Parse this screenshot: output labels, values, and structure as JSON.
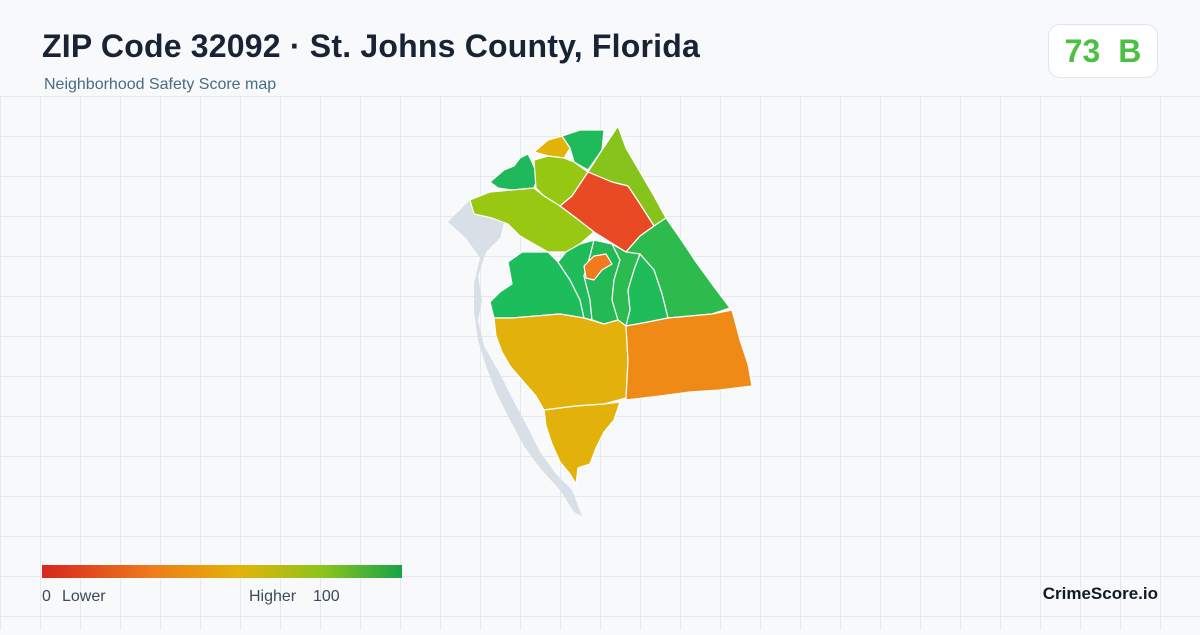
{
  "header": {
    "title": "ZIP Code 32092 · St. Johns County, Florida",
    "subtitle": "Neighborhood Safety Score map"
  },
  "score": {
    "value": "73",
    "grade": "B",
    "color": "#4cbf45"
  },
  "map": {
    "background_color": "#d8dfe6",
    "regions": [
      {
        "id": "nw-coast",
        "score": 85,
        "color": "#1fb85a"
      },
      {
        "id": "north-small",
        "score": 60,
        "color": "#e3b30a"
      },
      {
        "id": "north-top",
        "score": 86,
        "color": "#1fbb5a"
      },
      {
        "id": "north-east",
        "score": 76,
        "color": "#86c41b"
      },
      {
        "id": "north-center",
        "score": 74,
        "color": "#96c813"
      },
      {
        "id": "north-red",
        "score": 15,
        "color": "#e84a24"
      },
      {
        "id": "west-band",
        "score": 74,
        "color": "#98c812"
      },
      {
        "id": "east-upper",
        "score": 83,
        "color": "#2dbb4d"
      },
      {
        "id": "center-west",
        "score": 87,
        "color": "#1dbd5c"
      },
      {
        "id": "center-1",
        "score": 88,
        "color": "#20bc5c"
      },
      {
        "id": "center-2",
        "score": 86,
        "color": "#23ba55"
      },
      {
        "id": "center-orange",
        "score": 32,
        "color": "#f07a1c"
      },
      {
        "id": "center-3",
        "score": 84,
        "color": "#2bbb50"
      },
      {
        "id": "center-4",
        "score": 86,
        "color": "#1fbd5a"
      },
      {
        "id": "south-west",
        "score": 55,
        "color": "#e2b10b"
      },
      {
        "id": "south-east",
        "score": 40,
        "color": "#f08a16"
      },
      {
        "id": "south-tip",
        "score": 56,
        "color": "#e2b20b"
      }
    ]
  },
  "legend": {
    "min": "0",
    "low_label": "Lower",
    "high_label": "Higher",
    "max": "100",
    "colors": [
      "#d7261e",
      "#ee7a1d",
      "#e3b30a",
      "#8cc41b",
      "#17a34a"
    ]
  },
  "brand": "CrimeScore.io"
}
